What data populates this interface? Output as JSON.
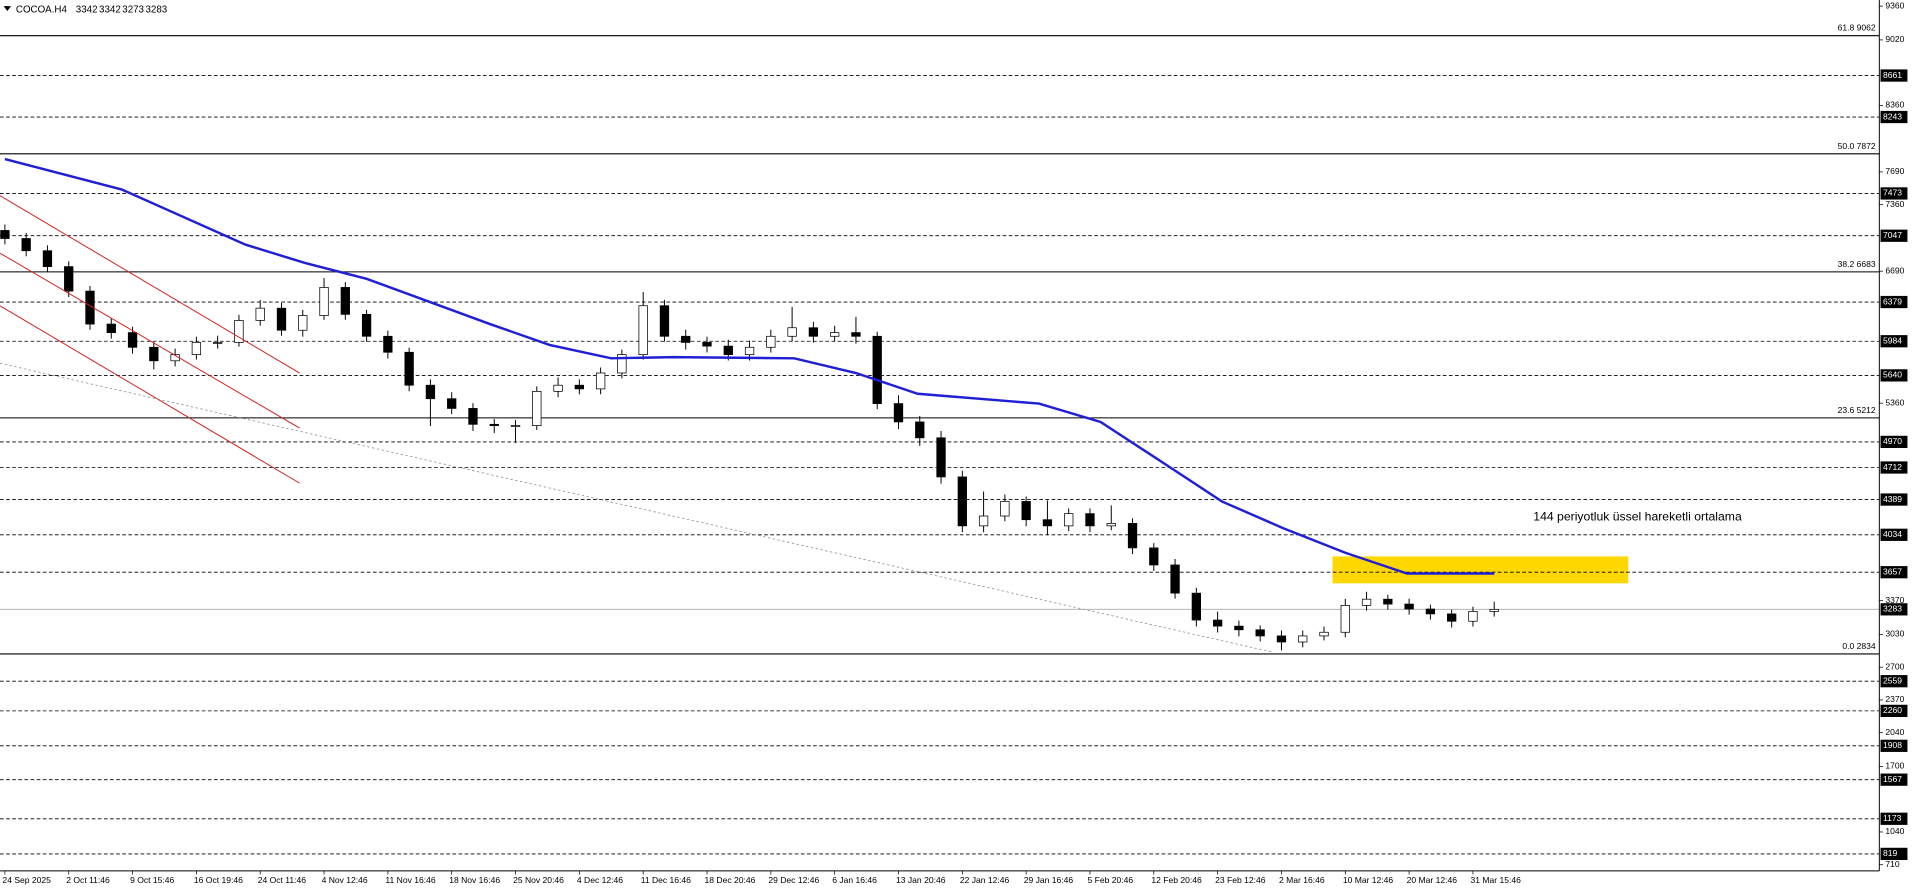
{
  "chart_data": {
    "type": "candlestick",
    "title": "COCOA.H4",
    "ohlc_header": [
      3342,
      3342,
      3273,
      3283
    ],
    "up_color": "#ffffff",
    "down_color": "#000000",
    "line_color": "#000000",
    "xlim": [
      -0.23,
      88.1
    ],
    "ylim": [
      648,
      9422
    ],
    "yticks": [
      9360,
      9020,
      8360,
      7690,
      7360,
      6690,
      5360,
      3370,
      3030,
      2700,
      2370,
      2040,
      1700,
      1040,
      710
    ],
    "xticks": [
      {
        "value": 0,
        "label": "24 Sep 2025"
      },
      {
        "value": 3,
        "label": "2 Oct 11:46"
      },
      {
        "value": 6,
        "label": "9 Oct 15:46"
      },
      {
        "value": 9,
        "label": "16 Oct 19:46"
      },
      {
        "value": 12,
        "label": "24 Oct 11:46"
      },
      {
        "value": 15,
        "label": "4 Nov 12:46"
      },
      {
        "value": 18,
        "label": "11 Nov 16:46"
      },
      {
        "value": 21,
        "label": "18 Nov 16:46"
      },
      {
        "value": 24,
        "label": "25 Nov 20:46"
      },
      {
        "value": 27,
        "label": "4 Dec 12:46"
      },
      {
        "value": 30,
        "label": "11 Dec 16:46"
      },
      {
        "value": 33,
        "label": "18 Dec 20:46"
      },
      {
        "value": 36,
        "label": "29 Dec 12:46"
      },
      {
        "value": 39,
        "label": "6 Jan 16:46"
      },
      {
        "value": 42,
        "label": "13 Jan 20:46"
      },
      {
        "value": 45,
        "label": "22 Jan 12:46"
      },
      {
        "value": 48,
        "label": "29 Jan 16:46"
      },
      {
        "value": 51,
        "label": "5 Feb 20:46"
      },
      {
        "value": 54,
        "label": "12 Feb 20:46"
      },
      {
        "value": 57,
        "label": "23 Feb 12:46"
      },
      {
        "value": 60,
        "label": "2 Mar 16:46"
      },
      {
        "value": 63,
        "label": "10 Mar 12:46"
      },
      {
        "value": 66,
        "label": "20 Mar 12:46"
      },
      {
        "value": 69,
        "label": "31 Mar 15:46"
      }
    ],
    "open": [
      7100,
      7019,
      6896,
      6736,
      6489,
      6157,
      6071,
      5923,
      5787,
      5849,
      5972,
      5972,
      6194,
      6317,
      6095,
      6243,
      6526,
      6255,
      6034,
      5873,
      5541,
      5405,
      5307,
      5147,
      5134,
      5134,
      5479,
      5541,
      5504,
      5664,
      5849,
      6342,
      6034,
      5972,
      5935,
      5849,
      5923,
      6034,
      6120,
      6034,
      6071,
      6034,
      5356,
      5171,
      5011,
      4617,
      4124,
      4223,
      4370,
      4186,
      4124,
      4247,
      4124,
      4149,
      3902,
      3730,
      3446,
      3175,
      3114,
      3077,
      3015,
      2954,
      3015,
      3052,
      3323,
      3385,
      3336,
      3286,
      3237,
      3163,
      3262
    ],
    "high": [
      7160,
      7075,
      6950,
      6790,
      6540,
      6215,
      6130,
      5975,
      5910,
      6030,
      6040,
      6250,
      6400,
      6370,
      6300,
      6620,
      6580,
      6300,
      6090,
      5920,
      5600,
      5470,
      5360,
      5200,
      5190,
      5530,
      5620,
      5600,
      5720,
      5900,
      6480,
      6400,
      6100,
      6030,
      6000,
      5990,
      6100,
      6330,
      6180,
      6140,
      6230,
      6080,
      5440,
      5230,
      5080,
      4680,
      4470,
      4440,
      4420,
      4380,
      4300,
      4300,
      4330,
      4200,
      3950,
      3790,
      3500,
      3260,
      3170,
      3120,
      3070,
      3070,
      3110,
      3390,
      3460,
      3430,
      3390,
      3330,
      3280,
      3310,
      3360
    ],
    "low": [
      6960,
      6840,
      6680,
      6430,
      6100,
      6010,
      5860,
      5700,
      5730,
      5800,
      5910,
      5930,
      6140,
      6040,
      6030,
      6200,
      6200,
      5980,
      5810,
      5480,
      5130,
      5250,
      5080,
      5060,
      4960,
      5090,
      5420,
      5450,
      5450,
      5610,
      5800,
      5980,
      5900,
      5870,
      5790,
      5790,
      5870,
      5980,
      5970,
      5980,
      5960,
      5300,
      5100,
      4930,
      4550,
      4060,
      4060,
      4170,
      4120,
      4030,
      4070,
      4060,
      4080,
      3840,
      3670,
      3390,
      3110,
      3050,
      3010,
      2960,
      2870,
      2900,
      2970,
      3000,
      3270,
      3280,
      3230,
      3180,
      3100,
      3110,
      3210
    ],
    "close": [
      7019,
      6896,
      6736,
      6489,
      6157,
      6071,
      5923,
      5787,
      5849,
      5972,
      5972,
      6194,
      6317,
      6095,
      6243,
      6526,
      6255,
      6034,
      5873,
      5541,
      5405,
      5307,
      5147,
      5134,
      5134,
      5479,
      5541,
      5504,
      5664,
      5849,
      6342,
      6034,
      5972,
      5935,
      5849,
      5923,
      6034,
      6120,
      6034,
      6071,
      6034,
      5356,
      5171,
      5011,
      4617,
      4124,
      4223,
      4370,
      4186,
      4124,
      4247,
      4124,
      4149,
      3902,
      3730,
      3446,
      3175,
      3114,
      3077,
      3015,
      2954,
      3015,
      3052,
      3323,
      3385,
      3336,
      3286,
      3237,
      3163,
      3262,
      3283
    ],
    "ema": {
      "name": "144 periyotluk üssel hareketli ortalama",
      "color": "#1f1fd6",
      "x": [
        0,
        5.5,
        11.3,
        14.1,
        17,
        22.8,
        25.6,
        28.5,
        31.4,
        37.1,
        40,
        42.9,
        48.6,
        51.5,
        54.4,
        57.2,
        60.1,
        63,
        65.9,
        70
      ],
      "values": [
        7820,
        7512,
        6958,
        6773,
        6613,
        6157,
        5947,
        5812,
        5824,
        5812,
        5664,
        5455,
        5356,
        5171,
        4765,
        4370,
        4099,
        3853,
        3644,
        3644
      ]
    },
    "levels": [
      8661,
      8243,
      7473,
      7047,
      6379,
      5984,
      5640,
      4970,
      4712,
      4389,
      4034,
      3657,
      2559,
      2260,
      1908,
      1567,
      1173,
      819
    ],
    "fib_levels": [
      {
        "value": 9062,
        "label": "61.8 9062"
      },
      {
        "value": 7872,
        "label": "50.0 7872"
      },
      {
        "value": 6683,
        "label": "38.2 6683"
      },
      {
        "value": 5212,
        "label": "23.6 5212"
      },
      {
        "value": 2834,
        "label": "0.0 2834"
      }
    ],
    "last_price": 3283,
    "zone": {
      "xlim": [
        62.4,
        76.3
      ],
      "ylim": [
        3545,
        3816
      ],
      "color": "#ffd700"
    }
  }
}
